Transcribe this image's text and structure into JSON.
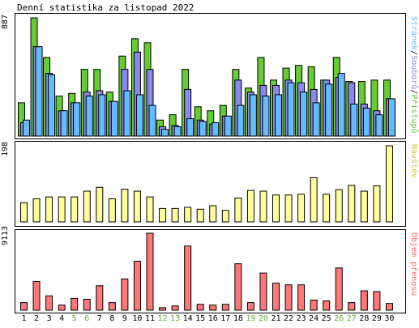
{
  "title": "Denní statistika za listopad 2022",
  "colors": {
    "hits": "#66cc33",
    "files": "#8888ee",
    "pages": "#66bbff",
    "visits": "#ffff99",
    "visits_label": "#cccc33",
    "traffic": "#ff7777",
    "traffic_label": "#ff6666",
    "weekend": "#66aa33",
    "border": "#000000"
  },
  "panels": {
    "top": {
      "ymax": "887",
      "label_hits": "Přístupů",
      "label_files": "Souborů",
      "label_pages": "Stránek",
      "sep": "/"
    },
    "mid": {
      "ymax": "198",
      "label": "Návštěv"
    },
    "bot": {
      "ymax": "9113",
      "label": "Objem přenosu"
    }
  },
  "chart_data": [
    {
      "type": "bar",
      "title": "Denní statistika za listopad 2022",
      "categories": [
        "1",
        "2",
        "3",
        "4",
        "5",
        "6",
        "7",
        "8",
        "9",
        "10",
        "11",
        "12",
        "13",
        "14",
        "15",
        "16",
        "17",
        "18",
        "19",
        "20",
        "21",
        "22",
        "23",
        "24",
        "25",
        "26",
        "27",
        "28",
        "29",
        "30"
      ],
      "weekend_days": [
        "5",
        "6",
        "12",
        "13",
        "19",
        "20",
        "26",
        "27"
      ],
      "ylim": [
        0,
        887
      ],
      "series": [
        {
          "name": "Přístupů",
          "values": [
            250,
            887,
            590,
            300,
            320,
            500,
            500,
            330,
            600,
            730,
            700,
            120,
            160,
            500,
            220,
            190,
            230,
            500,
            360,
            590,
            420,
            510,
            530,
            520,
            420,
            590,
            410,
            410,
            420,
            420
          ]
        },
        {
          "name": "Souborů",
          "values": [
            100,
            670,
            470,
            190,
            250,
            330,
            340,
            260,
            500,
            630,
            500,
            70,
            80,
            350,
            120,
            90,
            150,
            420,
            330,
            380,
            380,
            420,
            400,
            350,
            420,
            440,
            400,
            240,
            190,
            280
          ]
        },
        {
          "name": "Stránek",
          "values": [
            120,
            670,
            460,
            190,
            250,
            300,
            310,
            260,
            340,
            310,
            230,
            50,
            70,
            130,
            110,
            100,
            150,
            230,
            310,
            300,
            310,
            400,
            330,
            250,
            390,
            470,
            240,
            210,
            160,
            280
          ]
        }
      ]
    },
    {
      "type": "bar",
      "categories": [
        "1",
        "2",
        "3",
        "4",
        "5",
        "6",
        "7",
        "8",
        "9",
        "10",
        "11",
        "12",
        "13",
        "14",
        "15",
        "16",
        "17",
        "18",
        "19",
        "20",
        "21",
        "22",
        "23",
        "24",
        "25",
        "26",
        "27",
        "28",
        "29",
        "30"
      ],
      "ylim": [
        0,
        198
      ],
      "series": [
        {
          "name": "Návštěv",
          "values": [
            50,
            60,
            65,
            65,
            65,
            80,
            90,
            60,
            85,
            80,
            65,
            35,
            35,
            38,
            33,
            42,
            30,
            62,
            82,
            80,
            70,
            70,
            72,
            115,
            72,
            84,
            95,
            80,
            94,
            198
          ]
        }
      ]
    },
    {
      "type": "bar",
      "categories": [
        "1",
        "2",
        "3",
        "4",
        "5",
        "6",
        "7",
        "8",
        "9",
        "10",
        "11",
        "12",
        "13",
        "14",
        "15",
        "16",
        "17",
        "18",
        "19",
        "20",
        "21",
        "22",
        "23",
        "24",
        "25",
        "26",
        "27",
        "28",
        "29",
        "30"
      ],
      "ylim": [
        0,
        9113
      ],
      "series": [
        {
          "name": "Objem přenosu",
          "values": [
            900,
            3400,
            1700,
            600,
            1400,
            1300,
            2900,
            900,
            3700,
            5800,
            9113,
            300,
            500,
            7600,
            700,
            600,
            700,
            5500,
            900,
            4400,
            3200,
            3000,
            3000,
            1200,
            1100,
            5000,
            900,
            2300,
            2200,
            800
          ]
        }
      ]
    }
  ]
}
